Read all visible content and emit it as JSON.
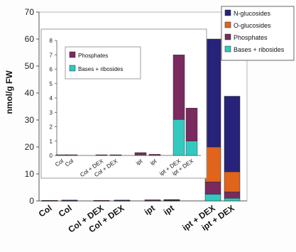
{
  "chart_data": [
    {
      "type": "bar",
      "stacked": true,
      "ylabel": "nmol/g FW",
      "ylim": [
        0,
        70
      ],
      "yticks": [
        0,
        10,
        20,
        30,
        40,
        50,
        60,
        70
      ],
      "categories": [
        "Col",
        "Col",
        "Col + DEX",
        "Col + DEX",
        "ipt",
        "ipt",
        "ipt + DEX",
        "ipt + DEX"
      ],
      "series": [
        {
          "name": "Bases + ribosides",
          "color": "#33C8C0",
          "values": [
            0.1,
            0.1,
            0.1,
            0.1,
            0.1,
            0.1,
            2.5,
            1.0
          ]
        },
        {
          "name": "Phosphates",
          "color": "#7A2A5E",
          "values": [
            0.1,
            0.1,
            0.1,
            0.1,
            0.3,
            0.2,
            4.5,
            2.3
          ]
        },
        {
          "name": "O-glucosides",
          "color": "#E0641C",
          "values": [
            0.0,
            0.0,
            0.0,
            0.0,
            0.0,
            0.0,
            13.0,
            7.5
          ]
        },
        {
          "name": "N-glucosides",
          "color": "#27237A",
          "values": [
            0.0,
            0.1,
            0.0,
            0.1,
            0.0,
            0.2,
            40.0,
            28.0
          ]
        }
      ],
      "legend": "top-right"
    },
    {
      "type": "bar",
      "stacked": true,
      "inset": true,
      "ylim": [
        0,
        8
      ],
      "yticks": [
        0,
        1,
        2,
        3,
        4,
        5,
        6,
        7,
        8
      ],
      "categories": [
        "Col",
        "Col",
        "Col + DEX",
        "Col + DEX",
        "ipt",
        "ipt",
        "ipt + DEX",
        "ipt + DEX"
      ],
      "series": [
        {
          "name": "Bases + ribosides",
          "color": "#33C8C0",
          "values": [
            0.0,
            0.0,
            0.0,
            0.0,
            0.05,
            0.0,
            2.5,
            1.0
          ]
        },
        {
          "name": "Phosphates",
          "color": "#7A2A5E",
          "values": [
            0.05,
            0.05,
            0.05,
            0.05,
            0.15,
            0.08,
            4.5,
            2.3
          ]
        }
      ],
      "legend": "top-left"
    }
  ]
}
